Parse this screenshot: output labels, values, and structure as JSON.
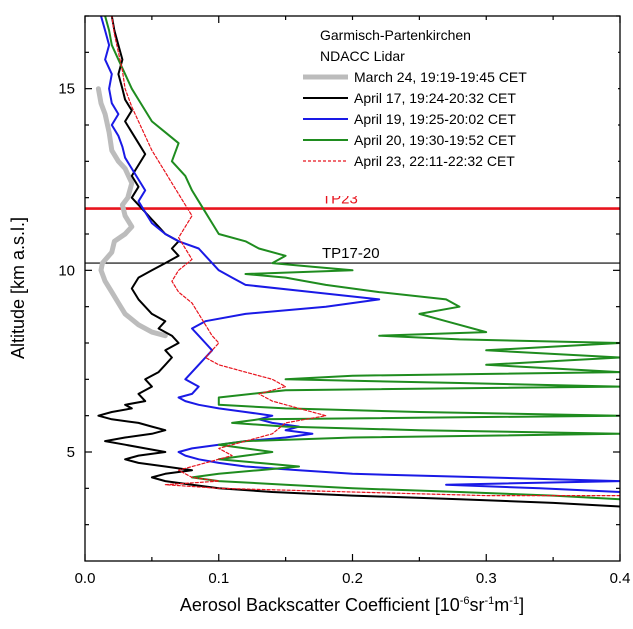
{
  "chart_data": {
    "type": "line",
    "xlabel": "Aerosol Backscatter Coefficient [10",
    "xlabel_exp1": "-6",
    "xlabel_mid": "sr",
    "xlabel_exp2": "-1",
    "xlabel_end": "m",
    "xlabel_exp3": "-1",
    "xlabel_close": "]",
    "ylabel": "Altitude [km a.s.l.]",
    "xlim": [
      0.0,
      0.4
    ],
    "ylim": [
      2.0,
      17.0
    ],
    "xticks": [
      {
        "value": 0.0,
        "label": "0.0"
      },
      {
        "value": 0.1,
        "label": "0.1"
      },
      {
        "value": 0.2,
        "label": "0.2"
      },
      {
        "value": 0.3,
        "label": "0.3"
      },
      {
        "value": 0.4,
        "label": "0.4"
      }
    ],
    "yticks": [
      {
        "value": 5,
        "label": "5"
      },
      {
        "value": 10,
        "label": "10"
      },
      {
        "value": 15,
        "label": "15"
      }
    ],
    "grid": false,
    "legend_position": "top-right",
    "legend_header": [
      "Garmisch-Partenkirchen",
      "NDACC Lidar"
    ],
    "hlines": [
      {
        "y": 11.7,
        "label": "TP23",
        "color": "#e8141e",
        "width": 2.6
      },
      {
        "y": 10.2,
        "label": "TP17-20",
        "color": "#000000",
        "width": 1.2
      }
    ],
    "series": [
      {
        "name": "March 24, 19:19-19:45 CET",
        "color": "#bcbcbc",
        "width": 5,
        "dash": "",
        "points": [
          [
            0.06,
            8.2
          ],
          [
            0.05,
            8.3
          ],
          [
            0.04,
            8.5
          ],
          [
            0.03,
            8.8
          ],
          [
            0.025,
            9.1
          ],
          [
            0.02,
            9.4
          ],
          [
            0.015,
            9.7
          ],
          [
            0.012,
            10.0
          ],
          [
            0.013,
            10.2
          ],
          [
            0.02,
            10.5
          ],
          [
            0.022,
            10.8
          ],
          [
            0.03,
            11.0
          ],
          [
            0.035,
            11.2
          ],
          [
            0.03,
            11.5
          ],
          [
            0.028,
            11.8
          ],
          [
            0.032,
            12.0
          ],
          [
            0.035,
            12.4
          ],
          [
            0.03,
            12.8
          ],
          [
            0.025,
            13.0
          ],
          [
            0.02,
            13.3
          ],
          [
            0.018,
            13.8
          ],
          [
            0.015,
            14.3
          ],
          [
            0.012,
            14.6
          ],
          [
            0.01,
            15.0
          ]
        ]
      },
      {
        "name": "April 17, 19:24-20:32 CET",
        "color": "#000000",
        "width": 2,
        "dash": "",
        "points": [
          [
            0.4,
            3.5
          ],
          [
            0.35,
            3.6
          ],
          [
            0.28,
            3.7
          ],
          [
            0.2,
            3.8
          ],
          [
            0.14,
            3.9
          ],
          [
            0.1,
            4.0
          ],
          [
            0.08,
            4.1
          ],
          [
            0.06,
            4.2
          ],
          [
            0.05,
            4.3
          ],
          [
            0.06,
            4.4
          ],
          [
            0.08,
            4.5
          ],
          [
            0.06,
            4.6
          ],
          [
            0.04,
            4.7
          ],
          [
            0.03,
            4.8
          ],
          [
            0.04,
            4.9
          ],
          [
            0.06,
            5.0
          ],
          [
            0.045,
            5.1
          ],
          [
            0.03,
            5.2
          ],
          [
            0.015,
            5.3
          ],
          [
            0.03,
            5.4
          ],
          [
            0.05,
            5.5
          ],
          [
            0.06,
            5.6
          ],
          [
            0.05,
            5.7
          ],
          [
            0.04,
            5.8
          ],
          [
            0.02,
            5.9
          ],
          [
            0.01,
            6.0
          ],
          [
            0.02,
            6.1
          ],
          [
            0.035,
            6.2
          ],
          [
            0.03,
            6.3
          ],
          [
            0.045,
            6.4
          ],
          [
            0.04,
            6.6
          ],
          [
            0.05,
            6.8
          ],
          [
            0.045,
            7.0
          ],
          [
            0.055,
            7.2
          ],
          [
            0.06,
            7.4
          ],
          [
            0.065,
            7.6
          ],
          [
            0.06,
            7.8
          ],
          [
            0.07,
            8.0
          ],
          [
            0.065,
            8.2
          ],
          [
            0.055,
            8.4
          ],
          [
            0.06,
            8.6
          ],
          [
            0.05,
            8.8
          ],
          [
            0.045,
            9.0
          ],
          [
            0.04,
            9.2
          ],
          [
            0.035,
            9.5
          ],
          [
            0.04,
            9.8
          ],
          [
            0.05,
            10.0
          ],
          [
            0.06,
            10.2
          ],
          [
            0.07,
            10.4
          ],
          [
            0.065,
            10.6
          ],
          [
            0.07,
            10.8
          ],
          [
            0.06,
            11.0
          ],
          [
            0.055,
            11.2
          ],
          [
            0.05,
            11.4
          ],
          [
            0.045,
            11.6
          ],
          [
            0.04,
            11.8
          ],
          [
            0.035,
            12.0
          ],
          [
            0.04,
            12.3
          ],
          [
            0.035,
            12.6
          ],
          [
            0.04,
            12.9
          ],
          [
            0.045,
            13.2
          ],
          [
            0.04,
            13.5
          ],
          [
            0.035,
            13.8
          ],
          [
            0.03,
            14.1
          ],
          [
            0.035,
            14.4
          ],
          [
            0.03,
            14.7
          ],
          [
            0.028,
            15.0
          ],
          [
            0.025,
            15.4
          ],
          [
            0.028,
            15.8
          ],
          [
            0.025,
            16.2
          ],
          [
            0.022,
            16.6
          ],
          [
            0.02,
            17.0
          ]
        ]
      },
      {
        "name": "April 19, 19:25-20:02 CET",
        "color": "#1a1ae6",
        "width": 2,
        "dash": "",
        "points": [
          [
            0.4,
            3.9
          ],
          [
            0.34,
            4.0
          ],
          [
            0.27,
            4.1
          ],
          [
            0.4,
            4.2
          ],
          [
            0.3,
            4.3
          ],
          [
            0.2,
            4.4
          ],
          [
            0.16,
            4.5
          ],
          [
            0.12,
            4.6
          ],
          [
            0.1,
            4.7
          ],
          [
            0.085,
            4.8
          ],
          [
            0.075,
            4.9
          ],
          [
            0.07,
            5.0
          ],
          [
            0.08,
            5.1
          ],
          [
            0.1,
            5.2
          ],
          [
            0.12,
            5.3
          ],
          [
            0.15,
            5.4
          ],
          [
            0.17,
            5.5
          ],
          [
            0.15,
            5.6
          ],
          [
            0.16,
            5.7
          ],
          [
            0.14,
            5.8
          ],
          [
            0.13,
            5.9
          ],
          [
            0.14,
            6.0
          ],
          [
            0.12,
            6.1
          ],
          [
            0.1,
            6.2
          ],
          [
            0.085,
            6.3
          ],
          [
            0.075,
            6.4
          ],
          [
            0.07,
            6.5
          ],
          [
            0.08,
            6.6
          ],
          [
            0.085,
            6.8
          ],
          [
            0.075,
            7.0
          ],
          [
            0.08,
            7.2
          ],
          [
            0.085,
            7.4
          ],
          [
            0.09,
            7.6
          ],
          [
            0.095,
            7.8
          ],
          [
            0.09,
            8.0
          ],
          [
            0.085,
            8.2
          ],
          [
            0.08,
            8.4
          ],
          [
            0.09,
            8.6
          ],
          [
            0.12,
            8.8
          ],
          [
            0.18,
            9.0
          ],
          [
            0.22,
            9.2
          ],
          [
            0.17,
            9.4
          ],
          [
            0.12,
            9.6
          ],
          [
            0.11,
            9.8
          ],
          [
            0.1,
            10.0
          ],
          [
            0.095,
            10.2
          ],
          [
            0.09,
            10.4
          ],
          [
            0.085,
            10.6
          ],
          [
            0.07,
            10.8
          ],
          [
            0.06,
            11.0
          ],
          [
            0.05,
            11.3
          ],
          [
            0.045,
            11.6
          ],
          [
            0.04,
            11.9
          ],
          [
            0.045,
            12.2
          ],
          [
            0.04,
            12.5
          ],
          [
            0.035,
            12.8
          ],
          [
            0.03,
            13.1
          ],
          [
            0.028,
            13.4
          ],
          [
            0.025,
            13.7
          ],
          [
            0.02,
            14.0
          ],
          [
            0.025,
            14.3
          ],
          [
            0.02,
            14.6
          ],
          [
            0.018,
            15.0
          ],
          [
            0.02,
            15.4
          ],
          [
            0.015,
            15.8
          ],
          [
            0.018,
            16.2
          ],
          [
            0.015,
            16.6
          ],
          [
            0.012,
            17.0
          ]
        ]
      },
      {
        "name": "April 20, 19:30-19:52 CET",
        "color": "#1f8c1f",
        "width": 2,
        "dash": "",
        "points": [
          [
            0.4,
            3.7
          ],
          [
            0.35,
            3.8
          ],
          [
            0.28,
            3.9
          ],
          [
            0.2,
            4.0
          ],
          [
            0.15,
            4.1
          ],
          [
            0.1,
            4.2
          ],
          [
            0.08,
            4.3
          ],
          [
            0.1,
            4.4
          ],
          [
            0.13,
            4.5
          ],
          [
            0.16,
            4.6
          ],
          [
            0.13,
            4.7
          ],
          [
            0.1,
            4.8
          ],
          [
            0.12,
            4.9
          ],
          [
            0.14,
            5.0
          ],
          [
            0.12,
            5.1
          ],
          [
            0.1,
            5.2
          ],
          [
            0.12,
            5.3
          ],
          [
            0.2,
            5.4
          ],
          [
            0.4,
            5.5
          ],
          [
            0.25,
            5.6
          ],
          [
            0.15,
            5.7
          ],
          [
            0.11,
            5.8
          ],
          [
            0.13,
            5.9
          ],
          [
            0.4,
            6.0
          ],
          [
            0.25,
            6.1
          ],
          [
            0.15,
            6.2
          ],
          [
            0.1,
            6.3
          ],
          [
            0.1,
            6.5
          ],
          [
            0.15,
            6.7
          ],
          [
            0.4,
            6.8
          ],
          [
            0.28,
            6.9
          ],
          [
            0.15,
            7.0
          ],
          [
            0.2,
            7.1
          ],
          [
            0.4,
            7.2
          ],
          [
            0.3,
            7.4
          ],
          [
            0.4,
            7.6
          ],
          [
            0.3,
            7.8
          ],
          [
            0.4,
            8.0
          ],
          [
            0.28,
            8.1
          ],
          [
            0.22,
            8.2
          ],
          [
            0.3,
            8.3
          ],
          [
            0.27,
            8.6
          ],
          [
            0.25,
            8.8
          ],
          [
            0.28,
            9.0
          ],
          [
            0.27,
            9.2
          ],
          [
            0.22,
            9.4
          ],
          [
            0.18,
            9.6
          ],
          [
            0.15,
            9.8
          ],
          [
            0.12,
            9.9
          ],
          [
            0.2,
            10.0
          ],
          [
            0.17,
            10.1
          ],
          [
            0.14,
            10.2
          ],
          [
            0.15,
            10.4
          ],
          [
            0.13,
            10.6
          ],
          [
            0.12,
            10.8
          ],
          [
            0.1,
            11.0
          ],
          [
            0.095,
            11.3
          ],
          [
            0.09,
            11.6
          ],
          [
            0.085,
            11.9
          ],
          [
            0.08,
            12.2
          ],
          [
            0.075,
            12.6
          ],
          [
            0.065,
            13.0
          ],
          [
            0.07,
            13.5
          ],
          [
            0.06,
            13.8
          ],
          [
            0.05,
            14.1
          ],
          [
            0.045,
            14.4
          ],
          [
            0.04,
            14.7
          ],
          [
            0.035,
            15.0
          ],
          [
            0.03,
            15.4
          ],
          [
            0.025,
            15.8
          ],
          [
            0.02,
            16.2
          ],
          [
            0.018,
            16.6
          ],
          [
            0.015,
            17.0
          ]
        ]
      },
      {
        "name": "April 23, 22:11-22:32 CET",
        "color": "#e8141e",
        "width": 1.2,
        "dash": "3,2",
        "points": [
          [
            0.4,
            3.8
          ],
          [
            0.3,
            3.8
          ],
          [
            0.2,
            3.9
          ],
          [
            0.1,
            4.0
          ],
          [
            0.06,
            4.1
          ],
          [
            0.1,
            4.2
          ],
          [
            0.08,
            4.3
          ],
          [
            0.07,
            4.5
          ],
          [
            0.09,
            4.7
          ],
          [
            0.11,
            4.9
          ],
          [
            0.1,
            5.1
          ],
          [
            0.12,
            5.3
          ],
          [
            0.14,
            5.5
          ],
          [
            0.15,
            5.8
          ],
          [
            0.18,
            6.0
          ],
          [
            0.16,
            6.2
          ],
          [
            0.14,
            6.4
          ],
          [
            0.13,
            6.6
          ],
          [
            0.15,
            6.8
          ],
          [
            0.14,
            7.0
          ],
          [
            0.12,
            7.2
          ],
          [
            0.1,
            7.4
          ],
          [
            0.09,
            7.6
          ],
          [
            0.095,
            7.8
          ],
          [
            0.1,
            8.0
          ],
          [
            0.095,
            8.2
          ],
          [
            0.09,
            8.5
          ],
          [
            0.085,
            8.8
          ],
          [
            0.08,
            9.1
          ],
          [
            0.07,
            9.4
          ],
          [
            0.065,
            9.7
          ],
          [
            0.07,
            10.0
          ],
          [
            0.08,
            10.3
          ],
          [
            0.075,
            10.6
          ],
          [
            0.07,
            10.9
          ],
          [
            0.075,
            11.2
          ],
          [
            0.08,
            11.5
          ],
          [
            0.075,
            11.8
          ],
          [
            0.07,
            12.1
          ],
          [
            0.065,
            12.4
          ],
          [
            0.06,
            12.7
          ],
          [
            0.055,
            13.0
          ],
          [
            0.05,
            13.3
          ],
          [
            0.045,
            13.7
          ],
          [
            0.04,
            14.1
          ],
          [
            0.035,
            14.5
          ],
          [
            0.03,
            15.0
          ],
          [
            0.028,
            15.5
          ],
          [
            0.025,
            16.0
          ],
          [
            0.022,
            16.5
          ],
          [
            0.02,
            17.0
          ]
        ]
      }
    ]
  }
}
